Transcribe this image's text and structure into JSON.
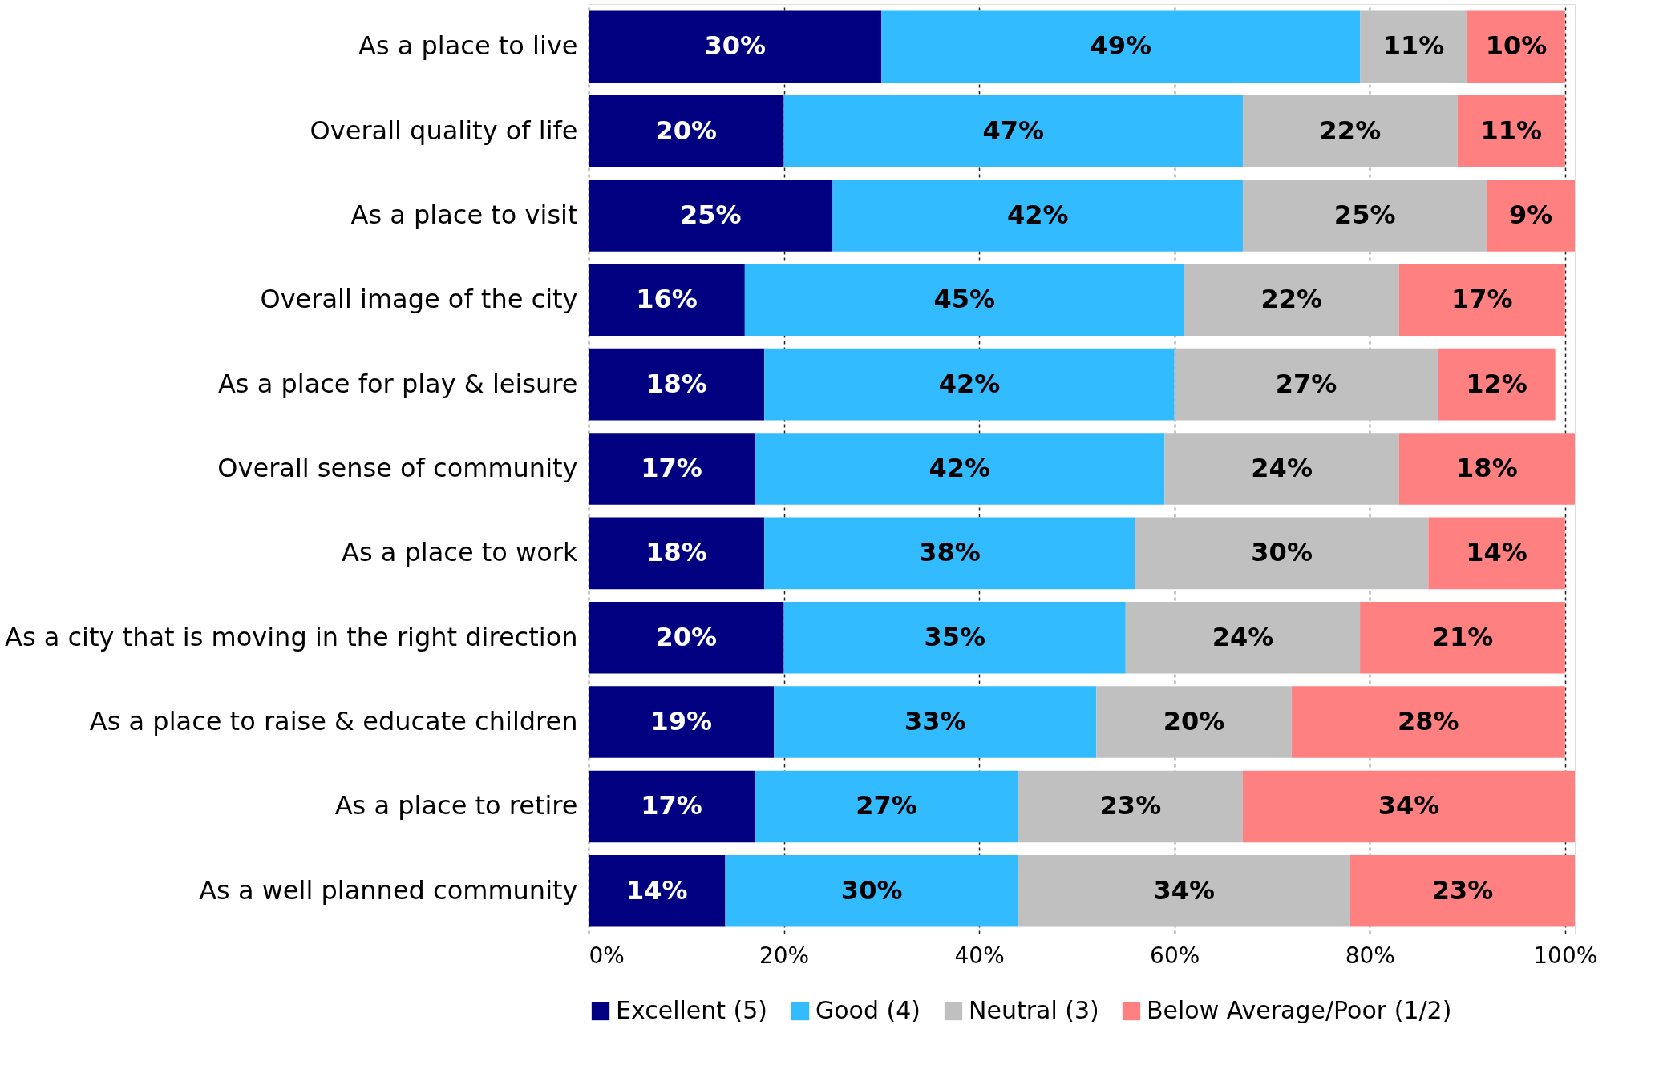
{
  "chart_data": {
    "type": "bar",
    "orientation": "horizontal",
    "stacked": true,
    "categories": [
      "As a place to live",
      "Overall quality of life",
      "As a place to visit",
      "Overall image of the city",
      "As a place for play & leisure",
      "Overall sense of community",
      "As a place to work",
      "As a city that is moving in the right direction",
      "As a place to raise & educate children",
      "As a place to retire",
      "As a well planned community"
    ],
    "series": [
      {
        "name": "Excellent (5)",
        "color": "#000080",
        "values": [
          30,
          20,
          25,
          16,
          18,
          17,
          18,
          20,
          19,
          17,
          14
        ],
        "value_labels": [
          "30%",
          "20%",
          "25%",
          "16%",
          "18%",
          "17%",
          "18%",
          "20%",
          "19%",
          "17%",
          "14%"
        ]
      },
      {
        "name": "Good (4)",
        "color": "#33bbff",
        "values": [
          49,
          47,
          42,
          45,
          42,
          42,
          38,
          35,
          33,
          27,
          30
        ],
        "value_labels": [
          "49%",
          "47%",
          "42%",
          "45%",
          "42%",
          "42%",
          "38%",
          "35%",
          "33%",
          "27%",
          "30%"
        ]
      },
      {
        "name": "Neutral (3)",
        "color": "#c0c0c0",
        "values": [
          11,
          22,
          25,
          22,
          27,
          24,
          30,
          24,
          20,
          23,
          34
        ],
        "value_labels": [
          "11%",
          "22%",
          "25%",
          "22%",
          "27%",
          "24%",
          "30%",
          "24%",
          "20%",
          "23%",
          "34%"
        ]
      },
      {
        "name": "Below Average/Poor (1/2)",
        "color": "#ff8080",
        "values": [
          10,
          11,
          9,
          17,
          12,
          18,
          14,
          21,
          28,
          34,
          23
        ],
        "value_labels": [
          "10%",
          "11%",
          "9%",
          "17%",
          "12%",
          "18%",
          "14%",
          "21%",
          "28%",
          "34%",
          "23%"
        ]
      }
    ],
    "xlim": [
      0,
      101
    ],
    "xticks": [
      {
        "value": 0,
        "label": "0%"
      },
      {
        "value": 20,
        "label": "20%"
      },
      {
        "value": 40,
        "label": "40%"
      },
      {
        "value": 60,
        "label": "60%"
      },
      {
        "value": 80,
        "label": "80%"
      },
      {
        "value": 100,
        "label": "100%"
      }
    ],
    "grid": "x",
    "legend": "bottom"
  }
}
